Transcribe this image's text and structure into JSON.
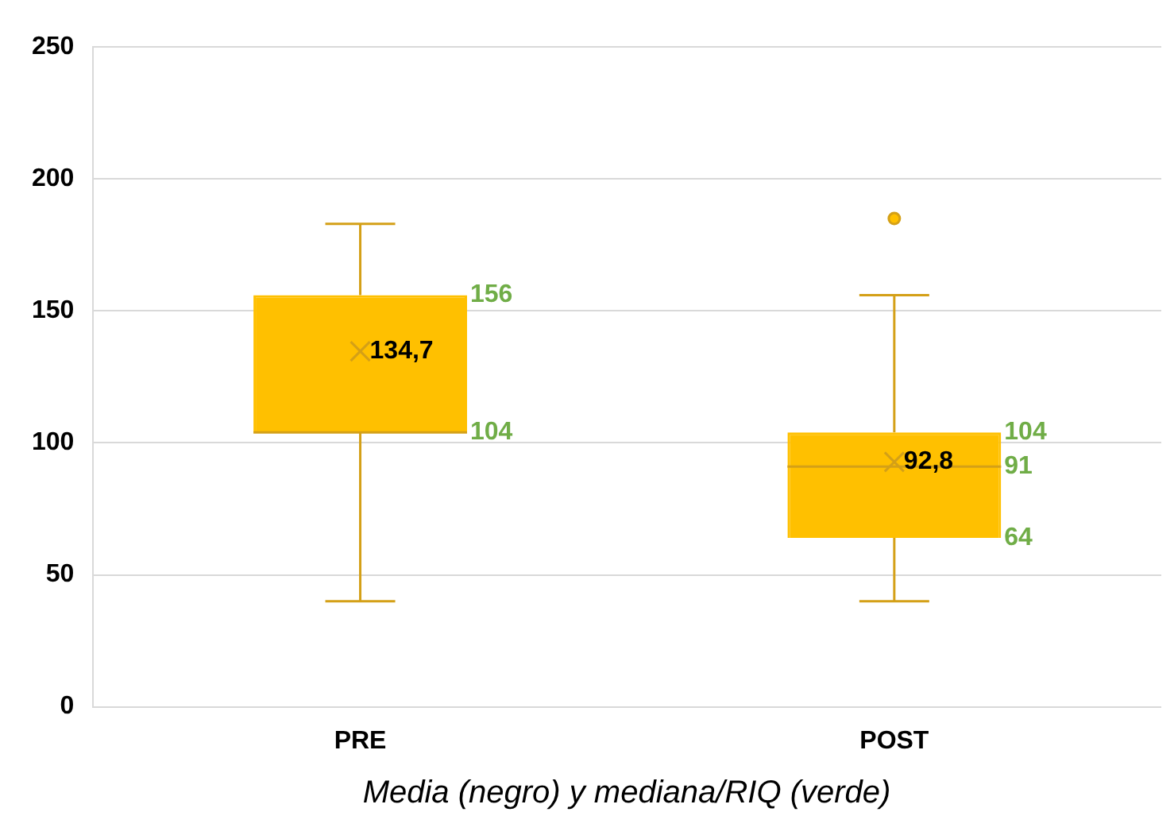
{
  "chart_data": {
    "type": "box",
    "categories": [
      "PRE",
      "POST"
    ],
    "boxes": [
      {
        "low": 40,
        "q1": 104,
        "median": 104,
        "q3": 156,
        "high": 183,
        "mean": 134.7
      },
      {
        "low": 40,
        "q1": 64,
        "median": 91,
        "q3": 104,
        "high": 156,
        "mean": 92.8,
        "outliers": [
          185
        ]
      }
    ],
    "color": "#ffc000",
    "ylim": [
      0,
      250
    ],
    "yticks": [
      0,
      50,
      100,
      150,
      200,
      250
    ],
    "grid": "y",
    "legend": false,
    "marker": "cross",
    "annotations": [
      "134,7",
      "156",
      "104",
      "92,8",
      "104",
      "91",
      "64",
      "Media (negro) y mediana/RIQ (verde)"
    ]
  }
}
